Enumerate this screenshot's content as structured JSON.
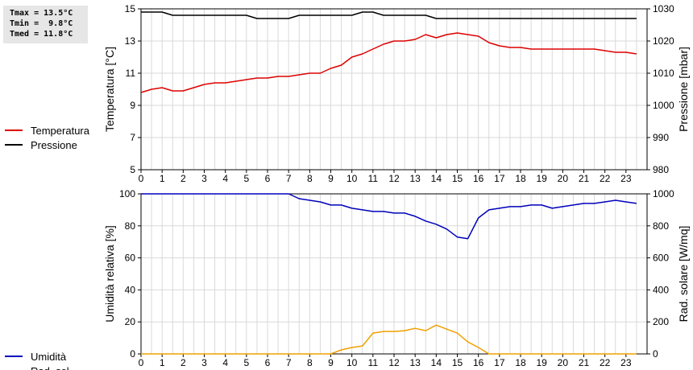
{
  "stats": {
    "tmax": "Tmax = 13.5°C",
    "tmin": "Tmin =  9.8°C",
    "tmed": "Tmed = 11.8°C"
  },
  "colors": {
    "temperature": "#dd0000",
    "pressure": "#000000",
    "humidity": "#0000bb",
    "radiation": "#f0a000",
    "grid": "#d9d9d9"
  },
  "chart_data": [
    {
      "type": "line",
      "x_ticks": [
        "0",
        "1",
        "2",
        "3",
        "4",
        "5",
        "6",
        "7",
        "8",
        "9",
        "10",
        "11",
        "12",
        "13",
        "14",
        "15",
        "16",
        "17",
        "18",
        "19",
        "20",
        "21",
        "22",
        "23"
      ],
      "xlim": [
        0,
        24
      ],
      "grid": true,
      "ylabel_left": "Temperatura [°C]",
      "ylabel_right": "Pressione [mbar]",
      "ylim_left": [
        5,
        15
      ],
      "ylim_right": [
        980,
        1030
      ],
      "yticks_left": [
        "5",
        "7",
        "9",
        "11",
        "13",
        "15"
      ],
      "yticks_right": [
        "980",
        "990",
        "1000",
        "1010",
        "1020",
        "1030"
      ],
      "series": [
        {
          "name": "Temperatura",
          "axis": "left",
          "color": "#dd0000",
          "x": [
            0,
            0.5,
            1,
            1.5,
            2,
            2.5,
            3,
            3.5,
            4,
            4.5,
            5,
            5.5,
            6,
            6.5,
            7,
            7.5,
            8,
            8.5,
            9,
            9.5,
            10,
            10.5,
            11,
            11.5,
            12,
            12.5,
            13,
            13.5,
            14,
            14.5,
            15,
            15.5,
            16,
            16.5,
            17,
            17.5,
            18,
            18.5,
            19,
            19.5,
            20,
            20.5,
            21,
            21.5,
            22,
            22.5,
            23,
            23.5
          ],
          "y": [
            9.8,
            10.0,
            10.1,
            9.9,
            9.9,
            10.1,
            10.3,
            10.4,
            10.4,
            10.5,
            10.6,
            10.7,
            10.7,
            10.8,
            10.8,
            10.9,
            11.0,
            11.0,
            11.3,
            11.5,
            12.0,
            12.2,
            12.5,
            12.8,
            13.0,
            13.0,
            13.1,
            13.4,
            13.2,
            13.4,
            13.5,
            13.4,
            13.3,
            12.9,
            12.7,
            12.6,
            12.6,
            12.5,
            12.5,
            12.5,
            12.5,
            12.5,
            12.5,
            12.5,
            12.4,
            12.3,
            12.3,
            12.2
          ]
        },
        {
          "name": "Pressione",
          "axis": "right",
          "color": "#000000",
          "x": [
            0,
            1,
            1.5,
            5,
            5.5,
            7,
            7.5,
            10,
            10.5,
            11,
            11.5,
            13,
            13.5,
            14,
            23.5
          ],
          "y": [
            1029,
            1029,
            1028,
            1028,
            1027,
            1027,
            1028,
            1028,
            1029,
            1029,
            1028,
            1028,
            1028,
            1027,
            1027
          ]
        }
      ]
    },
    {
      "type": "line",
      "x_ticks": [
        "0",
        "1",
        "2",
        "3",
        "4",
        "5",
        "6",
        "7",
        "8",
        "9",
        "10",
        "11",
        "12",
        "13",
        "14",
        "15",
        "16",
        "17",
        "18",
        "19",
        "20",
        "21",
        "22",
        "23"
      ],
      "xlim": [
        0,
        24
      ],
      "grid": true,
      "ylabel_left": "Umidità relativa [%]",
      "ylabel_right": "Rad. solare [W/mq]",
      "ylim_left": [
        0,
        100
      ],
      "ylim_right": [
        0,
        1000
      ],
      "yticks_left": [
        "0",
        "20",
        "40",
        "60",
        "80",
        "100"
      ],
      "yticks_right": [
        "0",
        "200",
        "400",
        "600",
        "800",
        "1000"
      ],
      "series": [
        {
          "name": "Umidità",
          "axis": "left",
          "color": "#0000bb",
          "x": [
            0,
            7,
            7.5,
            8,
            8.5,
            9,
            9.5,
            10,
            10.5,
            11,
            11.5,
            12,
            12.5,
            13,
            13.5,
            14,
            14.5,
            15,
            15.5,
            16,
            16.5,
            17,
            17.5,
            18,
            18.5,
            19,
            19.5,
            20,
            20.5,
            21,
            21.5,
            22,
            22.5,
            23,
            23.5
          ],
          "y": [
            100,
            100,
            97,
            96,
            95,
            93,
            93,
            91,
            90,
            89,
            89,
            88,
            88,
            86,
            83,
            81,
            78,
            73,
            72,
            85,
            90,
            91,
            92,
            92,
            93,
            93,
            91,
            92,
            93,
            94,
            94,
            95,
            96,
            95,
            94
          ]
        },
        {
          "name": "Rad. sol.",
          "axis": "right",
          "color": "#f0a000",
          "x": [
            0,
            9,
            9.5,
            10,
            10.5,
            11,
            11.5,
            12,
            12.5,
            13,
            13.5,
            14,
            14.5,
            15,
            15.5,
            16,
            16.5,
            23.5
          ],
          "y": [
            0,
            0,
            25,
            40,
            50,
            130,
            140,
            140,
            145,
            160,
            145,
            180,
            155,
            130,
            75,
            40,
            0,
            0
          ]
        }
      ]
    }
  ]
}
